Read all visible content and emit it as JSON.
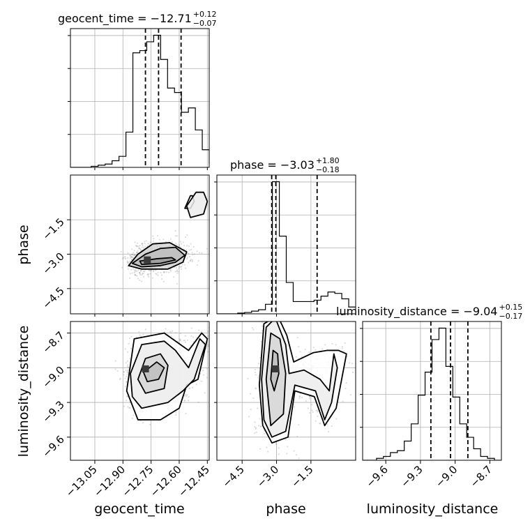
{
  "chart_data": {
    "type": "corner",
    "parameters": [
      {
        "name": "geocent_time",
        "label": "geocent_time",
        "range": [
          -13.18,
          -12.44
        ],
        "ticks": [
          -13.05,
          -12.9,
          -12.75,
          -12.6,
          -12.45
        ],
        "tick_labels": [
          "−13.05",
          "−12.90",
          "−12.75",
          "−12.60",
          "−12.45"
        ]
      },
      {
        "name": "phase",
        "label": "phase",
        "range": [
          -5.6,
          0.45
        ],
        "ticks": [
          -4.5,
          -3.0,
          -1.5
        ],
        "tick_labels": [
          "−4.5",
          "−3.0",
          "−1.5"
        ]
      },
      {
        "name": "luminosity_distance",
        "label": "luminosity_distance",
        "range": [
          -9.8,
          -8.6
        ],
        "ticks": [
          -9.6,
          -9.3,
          -9.0,
          -8.7
        ],
        "tick_labels": [
          "−9.6",
          "−9.3",
          "−9.0",
          "−8.7"
        ]
      }
    ],
    "titles": [
      {
        "text": "geocent_time = −12.71",
        "plus": "+0.12",
        "minus": "−0.07"
      },
      {
        "text": "phase = −3.03",
        "plus": "+1.80",
        "minus": "−0.18"
      },
      {
        "text": "luminosity_distance = −9.04",
        "plus": "+0.15",
        "minus": "−0.17"
      }
    ],
    "quantiles": [
      [
        -12.78,
        -12.71,
        -12.59
      ],
      [
        -3.21,
        -3.03,
        -1.23
      ],
      [
        -9.21,
        -9.04,
        -8.89
      ]
    ],
    "histograms": [
      {
        "bin_start": -13.18,
        "bin_width": 0.037,
        "values": [
          0,
          0,
          0,
          0.5,
          1,
          1.5,
          3,
          5,
          16,
          52,
          53,
          57,
          60,
          49,
          36,
          34,
          25,
          27,
          17,
          8,
          2
        ]
      },
      {
        "bin_start": -5.6,
        "bin_width": 0.3025,
        "values": [
          0,
          0,
          0,
          0.5,
          1,
          2,
          3,
          7,
          97,
          57,
          23,
          9,
          9,
          9,
          10,
          13,
          16,
          15,
          11,
          5
        ]
      },
      {
        "bin_start": -9.8,
        "bin_width": 0.06,
        "values": [
          0,
          0,
          1,
          2,
          4,
          5,
          10,
          19,
          34,
          46,
          63,
          69,
          49,
          33,
          19,
          12,
          6,
          2,
          1,
          0
        ]
      }
    ],
    "pairs": [
      {
        "x": "geocent_time",
        "y": "phase",
        "mode": [
          -12.77,
          -3.25
        ],
        "contours": [
          [
            [
              -12.81,
              -3.3
            ],
            [
              -12.72,
              -3.2
            ],
            [
              -12.64,
              -3.15
            ],
            [
              -12.62,
              -3.25
            ],
            [
              -12.7,
              -3.4
            ],
            [
              -12.8,
              -3.45
            ]
          ],
          [
            [
              -12.85,
              -3.4
            ],
            [
              -12.78,
              -3.0
            ],
            [
              -12.7,
              -2.75
            ],
            [
              -12.62,
              -2.7
            ],
            [
              -12.57,
              -3.05
            ],
            [
              -12.62,
              -3.35
            ],
            [
              -12.7,
              -3.5
            ],
            [
              -12.8,
              -3.55
            ]
          ],
          [
            [
              -12.87,
              -3.5
            ],
            [
              -12.82,
              -3.0
            ],
            [
              -12.74,
              -2.55
            ],
            [
              -12.65,
              -2.5
            ],
            [
              -12.56,
              -2.9
            ],
            [
              -12.58,
              -3.35
            ],
            [
              -12.66,
              -3.65
            ],
            [
              -12.8,
              -3.65
            ]
          ],
          [
            [
              -12.56,
              -0.9
            ],
            [
              -12.51,
              -0.3
            ],
            [
              -12.47,
              -0.3
            ],
            [
              -12.45,
              -0.7
            ],
            [
              -12.47,
              -1.25
            ],
            [
              -12.54,
              -1.4
            ]
          ],
          [
            [
              -12.57,
              -1.0
            ],
            [
              -12.54,
              -0.45
            ],
            [
              -12.53,
              -0.45
            ],
            [
              -12.52,
              -0.7
            ],
            [
              -12.54,
              -1.0
            ]
          ]
        ]
      },
      {
        "x": "geocent_time",
        "y": "luminosity_distance",
        "mode": [
          -12.78,
          -9.01
        ],
        "contours": [
          [
            [
              -12.79,
              -9.04
            ],
            [
              -12.72,
              -8.95
            ],
            [
              -12.68,
              -9.0
            ],
            [
              -12.71,
              -9.1
            ],
            [
              -12.77,
              -9.12
            ]
          ],
          [
            [
              -12.82,
              -9.1
            ],
            [
              -12.78,
              -8.92
            ],
            [
              -12.7,
              -8.88
            ],
            [
              -12.66,
              -8.98
            ],
            [
              -12.68,
              -9.18
            ],
            [
              -12.78,
              -9.22
            ]
          ],
          [
            [
              -12.86,
              -9.05
            ],
            [
              -12.8,
              -8.8
            ],
            [
              -12.68,
              -8.77
            ],
            [
              -12.62,
              -8.85
            ],
            [
              -12.55,
              -9.0
            ],
            [
              -12.49,
              -8.75
            ],
            [
              -12.46,
              -8.8
            ],
            [
              -12.52,
              -9.1
            ],
            [
              -12.58,
              -9.2
            ],
            [
              -12.66,
              -9.3
            ],
            [
              -12.8,
              -9.35
            ],
            [
              -12.85,
              -9.25
            ]
          ],
          [
            [
              -12.88,
              -9.2
            ],
            [
              -12.84,
              -8.75
            ],
            [
              -12.68,
              -8.7
            ],
            [
              -12.55,
              -8.85
            ],
            [
              -12.48,
              -8.7
            ],
            [
              -12.45,
              -8.75
            ],
            [
              -12.5,
              -9.1
            ],
            [
              -12.56,
              -9.15
            ],
            [
              -12.6,
              -9.35
            ],
            [
              -12.7,
              -9.45
            ],
            [
              -12.82,
              -9.45
            ]
          ]
        ]
      },
      {
        "x": "phase",
        "y": "luminosity_distance",
        "mode": [
          -3.05,
          -9.01
        ],
        "contours": [
          [
            [
              -3.25,
              -9.1
            ],
            [
              -3.15,
              -8.85
            ],
            [
              -2.95,
              -8.88
            ],
            [
              -2.9,
              -9.05
            ],
            [
              -3.1,
              -9.2
            ]
          ],
          [
            [
              -3.45,
              -9.1
            ],
            [
              -3.25,
              -8.7
            ],
            [
              -2.85,
              -8.75
            ],
            [
              -2.6,
              -9.05
            ],
            [
              -2.7,
              -9.4
            ],
            [
              -3.25,
              -9.5
            ]
          ],
          [
            [
              -3.65,
              -9.1
            ],
            [
              -3.45,
              -8.65
            ],
            [
              -3.05,
              -8.57
            ],
            [
              -2.6,
              -8.8
            ],
            [
              -2.45,
              -9.05
            ],
            [
              -1.8,
              -9.02
            ],
            [
              -1.1,
              -9.1
            ],
            [
              -0.7,
              -9.2
            ],
            [
              -0.5,
              -8.88
            ],
            [
              -0.35,
              -9.0
            ],
            [
              -0.6,
              -9.3
            ],
            [
              -0.9,
              -9.45
            ],
            [
              -1.3,
              -9.2
            ],
            [
              -2.2,
              -9.15
            ],
            [
              -2.6,
              -9.55
            ],
            [
              -3.2,
              -9.6
            ],
            [
              -3.55,
              -9.45
            ]
          ],
          [
            [
              -3.75,
              -9.15
            ],
            [
              -3.55,
              -8.62
            ],
            [
              -2.95,
              -8.55
            ],
            [
              -2.55,
              -8.72
            ],
            [
              -2.25,
              -8.95
            ],
            [
              -1.4,
              -8.87
            ],
            [
              -0.8,
              -8.85
            ],
            [
              -0.3,
              -8.85
            ],
            [
              0.05,
              -8.88
            ],
            [
              -0.4,
              -9.35
            ],
            [
              -0.9,
              -9.5
            ],
            [
              -1.35,
              -9.25
            ],
            [
              -2.2,
              -9.2
            ],
            [
              -2.5,
              -9.6
            ],
            [
              -3.2,
              -9.65
            ],
            [
              -3.6,
              -9.5
            ]
          ]
        ]
      }
    ],
    "grid": true,
    "colors": {
      "lines": "#000000",
      "grid": "#b0b0b0",
      "points": "#808080",
      "fill": "#e8e8e8",
      "mode": "#3a3a3a"
    }
  }
}
